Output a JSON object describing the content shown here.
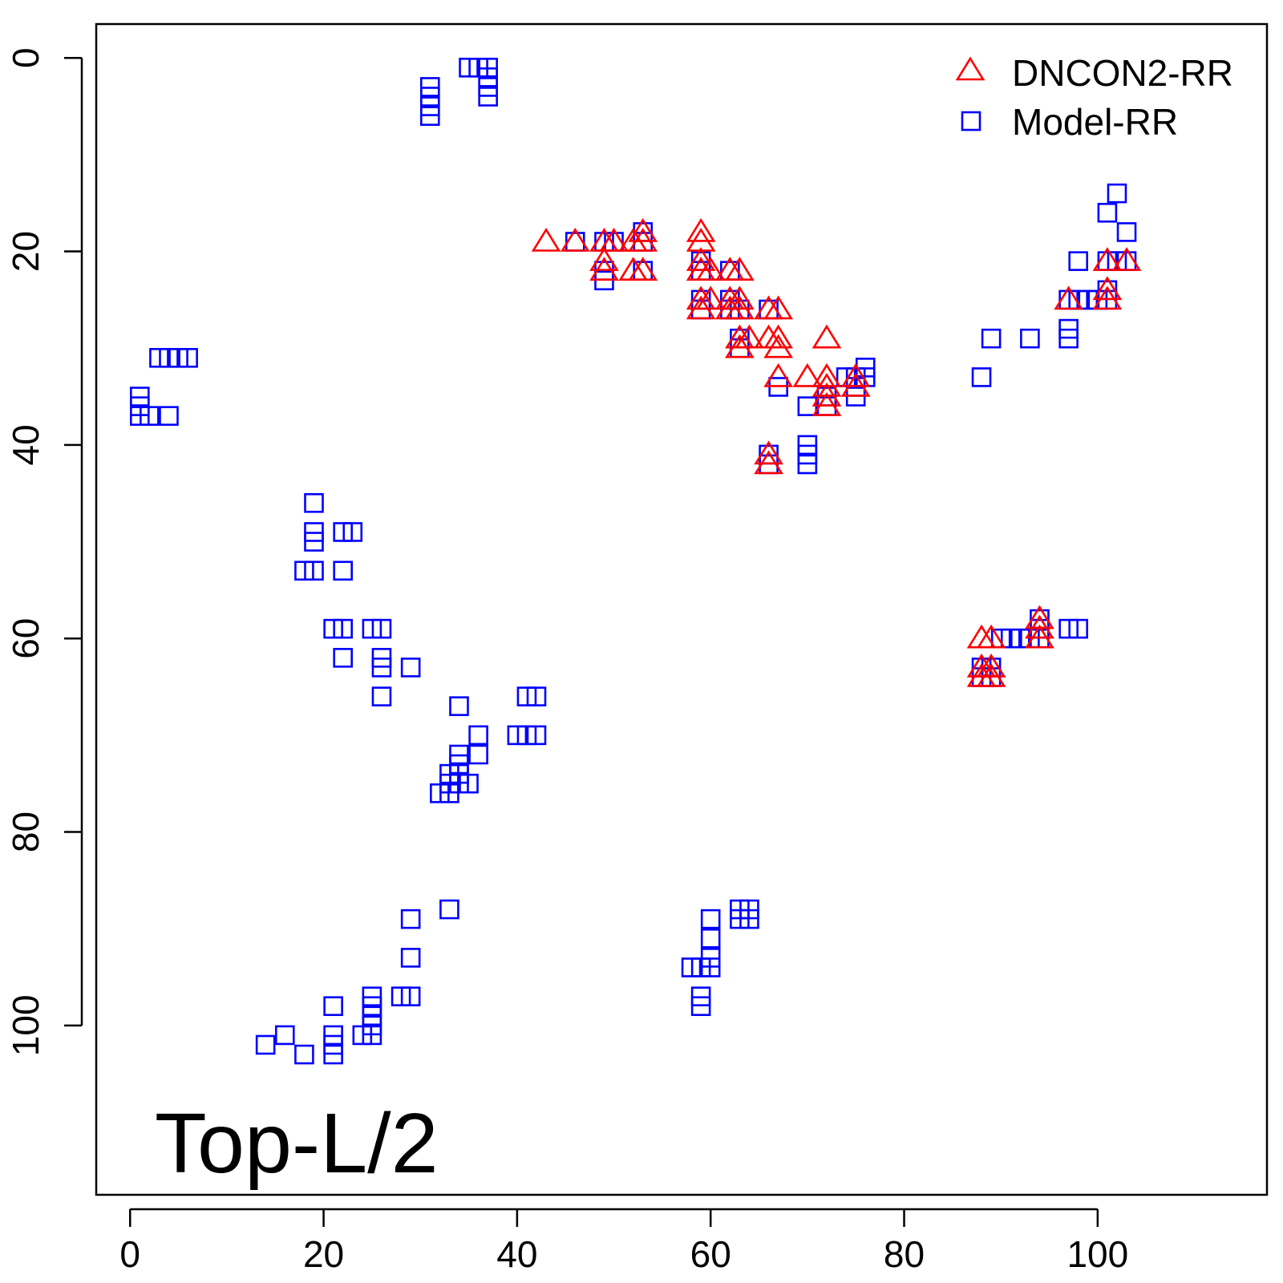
{
  "chart_data": {
    "type": "scatter",
    "title": "",
    "xlabel": "",
    "ylabel": "",
    "xlim": [
      -3.5,
      117.5
    ],
    "ylim": [
      -3.5,
      117.5
    ],
    "y_reversed": true,
    "x_ticks": [
      0,
      20,
      40,
      60,
      80,
      100
    ],
    "y_ticks": [
      0,
      20,
      40,
      60,
      80,
      100
    ],
    "x_tick_labels": [
      "0",
      "20",
      "40",
      "60",
      "80",
      "100"
    ],
    "y_tick_labels": [
      "0",
      "20",
      "40",
      "60",
      "80",
      "100"
    ],
    "grid": false,
    "legend_position": "top-right",
    "annotation": "Top-L/2",
    "series": [
      {
        "name": "DNCON2-RR",
        "marker": "triangle",
        "color": "#ff0000",
        "points": [
          [
            43,
            19
          ],
          [
            46,
            19
          ],
          [
            49,
            19
          ],
          [
            50,
            19
          ],
          [
            52,
            19
          ],
          [
            53,
            18
          ],
          [
            53,
            19
          ],
          [
            49,
            21
          ],
          [
            49,
            22
          ],
          [
            52,
            22
          ],
          [
            53,
            22
          ],
          [
            59,
            18
          ],
          [
            59,
            19
          ],
          [
            59,
            21
          ],
          [
            59,
            22
          ],
          [
            60,
            22
          ],
          [
            62,
            22
          ],
          [
            63,
            22
          ],
          [
            59,
            25
          ],
          [
            59,
            26
          ],
          [
            60,
            25
          ],
          [
            62,
            25
          ],
          [
            63,
            25
          ],
          [
            62,
            26
          ],
          [
            63,
            26
          ],
          [
            64,
            29
          ],
          [
            63,
            29
          ],
          [
            63,
            30
          ],
          [
            66,
            26
          ],
          [
            67,
            26
          ],
          [
            66,
            29
          ],
          [
            67,
            29
          ],
          [
            67,
            30
          ],
          [
            67,
            33
          ],
          [
            70,
            33
          ],
          [
            72,
            29
          ],
          [
            72,
            33
          ],
          [
            72,
            34
          ],
          [
            72,
            35
          ],
          [
            72,
            36
          ],
          [
            75,
            33
          ],
          [
            75,
            34
          ],
          [
            66,
            41
          ],
          [
            66,
            42
          ],
          [
            97,
            25
          ],
          [
            101,
            21
          ],
          [
            101,
            24
          ],
          [
            101,
            25
          ],
          [
            103,
            21
          ],
          [
            88,
            60
          ],
          [
            89,
            60
          ],
          [
            88,
            63
          ],
          [
            88,
            64
          ],
          [
            89,
            63
          ],
          [
            89,
            64
          ],
          [
            94,
            58
          ],
          [
            94,
            59
          ],
          [
            94,
            60
          ]
        ]
      },
      {
        "name": "Model-RR",
        "marker": "square",
        "color": "#0000ff",
        "points": [
          [
            31,
            3
          ],
          [
            31,
            4
          ],
          [
            31,
            5
          ],
          [
            31,
            6
          ],
          [
            35,
            1
          ],
          [
            36,
            1
          ],
          [
            37,
            1
          ],
          [
            37,
            2
          ],
          [
            37,
            3
          ],
          [
            37,
            4
          ],
          [
            3,
            31
          ],
          [
            4,
            31
          ],
          [
            5,
            31
          ],
          [
            6,
            31
          ],
          [
            1,
            35
          ],
          [
            1,
            36
          ],
          [
            1,
            37
          ],
          [
            2,
            37
          ],
          [
            4,
            37
          ],
          [
            46,
            19
          ],
          [
            49,
            19
          ],
          [
            50,
            19
          ],
          [
            53,
            18
          ],
          [
            53,
            19
          ],
          [
            49,
            22
          ],
          [
            49,
            23
          ],
          [
            53,
            22
          ],
          [
            59,
            21
          ],
          [
            59,
            22
          ],
          [
            62,
            22
          ],
          [
            59,
            25
          ],
          [
            59,
            26
          ],
          [
            62,
            25
          ],
          [
            62,
            26
          ],
          [
            63,
            26
          ],
          [
            63,
            29
          ],
          [
            63,
            30
          ],
          [
            66,
            26
          ],
          [
            66,
            41
          ],
          [
            66,
            42
          ],
          [
            67,
            34
          ],
          [
            70,
            36
          ],
          [
            72,
            35
          ],
          [
            72,
            36
          ],
          [
            70,
            40
          ],
          [
            70,
            41
          ],
          [
            70,
            42
          ],
          [
            74,
            33
          ],
          [
            75,
            33
          ],
          [
            75,
            34
          ],
          [
            75,
            35
          ],
          [
            76,
            32
          ],
          [
            76,
            33
          ],
          [
            101,
            16
          ],
          [
            102,
            14
          ],
          [
            103,
            18
          ],
          [
            101,
            21
          ],
          [
            102,
            21
          ],
          [
            103,
            21
          ],
          [
            98,
            21
          ],
          [
            97,
            25
          ],
          [
            98,
            25
          ],
          [
            99,
            25
          ],
          [
            100,
            25
          ],
          [
            101,
            24
          ],
          [
            101,
            25
          ],
          [
            97,
            28
          ],
          [
            97,
            29
          ],
          [
            89,
            29
          ],
          [
            93,
            29
          ],
          [
            88,
            33
          ],
          [
            19,
            46
          ],
          [
            19,
            49
          ],
          [
            19,
            50
          ],
          [
            22,
            49
          ],
          [
            23,
            49
          ],
          [
            18,
            53
          ],
          [
            19,
            53
          ],
          [
            22,
            53
          ],
          [
            21,
            59
          ],
          [
            22,
            59
          ],
          [
            25,
            59
          ],
          [
            26,
            59
          ],
          [
            22,
            62
          ],
          [
            26,
            62
          ],
          [
            26,
            63
          ],
          [
            29,
            63
          ],
          [
            26,
            66
          ],
          [
            34,
            67
          ],
          [
            41,
            66
          ],
          [
            42,
            66
          ],
          [
            40,
            70
          ],
          [
            41,
            70
          ],
          [
            42,
            70
          ],
          [
            36,
            70
          ],
          [
            36,
            72
          ],
          [
            34,
            72
          ],
          [
            34,
            73
          ],
          [
            33,
            74
          ],
          [
            34,
            74
          ],
          [
            33,
            75
          ],
          [
            34,
            75
          ],
          [
            35,
            75
          ],
          [
            32,
            76
          ],
          [
            33,
            76
          ],
          [
            33,
            88
          ],
          [
            29,
            89
          ],
          [
            29,
            93
          ],
          [
            28,
            97
          ],
          [
            29,
            97
          ],
          [
            21,
            98
          ],
          [
            25,
            97
          ],
          [
            25,
            98
          ],
          [
            25,
            99
          ],
          [
            25,
            100
          ],
          [
            24,
            101
          ],
          [
            25,
            101
          ],
          [
            21,
            101
          ],
          [
            21,
            102
          ],
          [
            21,
            103
          ],
          [
            16,
            101
          ],
          [
            14,
            102
          ],
          [
            18,
            103
          ],
          [
            58,
            94
          ],
          [
            59,
            94
          ],
          [
            60,
            94
          ],
          [
            60,
            93
          ],
          [
            60,
            91
          ],
          [
            60,
            89
          ],
          [
            59,
            97
          ],
          [
            59,
            98
          ],
          [
            63,
            88
          ],
          [
            64,
            88
          ],
          [
            63,
            89
          ],
          [
            64,
            89
          ],
          [
            88,
            63
          ],
          [
            88,
            64
          ],
          [
            89,
            63
          ],
          [
            89,
            64
          ],
          [
            90,
            60
          ],
          [
            91,
            60
          ],
          [
            92,
            60
          ],
          [
            93,
            60
          ],
          [
            94,
            58
          ],
          [
            94,
            59
          ],
          [
            94,
            60
          ],
          [
            97,
            59
          ],
          [
            98,
            59
          ]
        ]
      }
    ]
  }
}
